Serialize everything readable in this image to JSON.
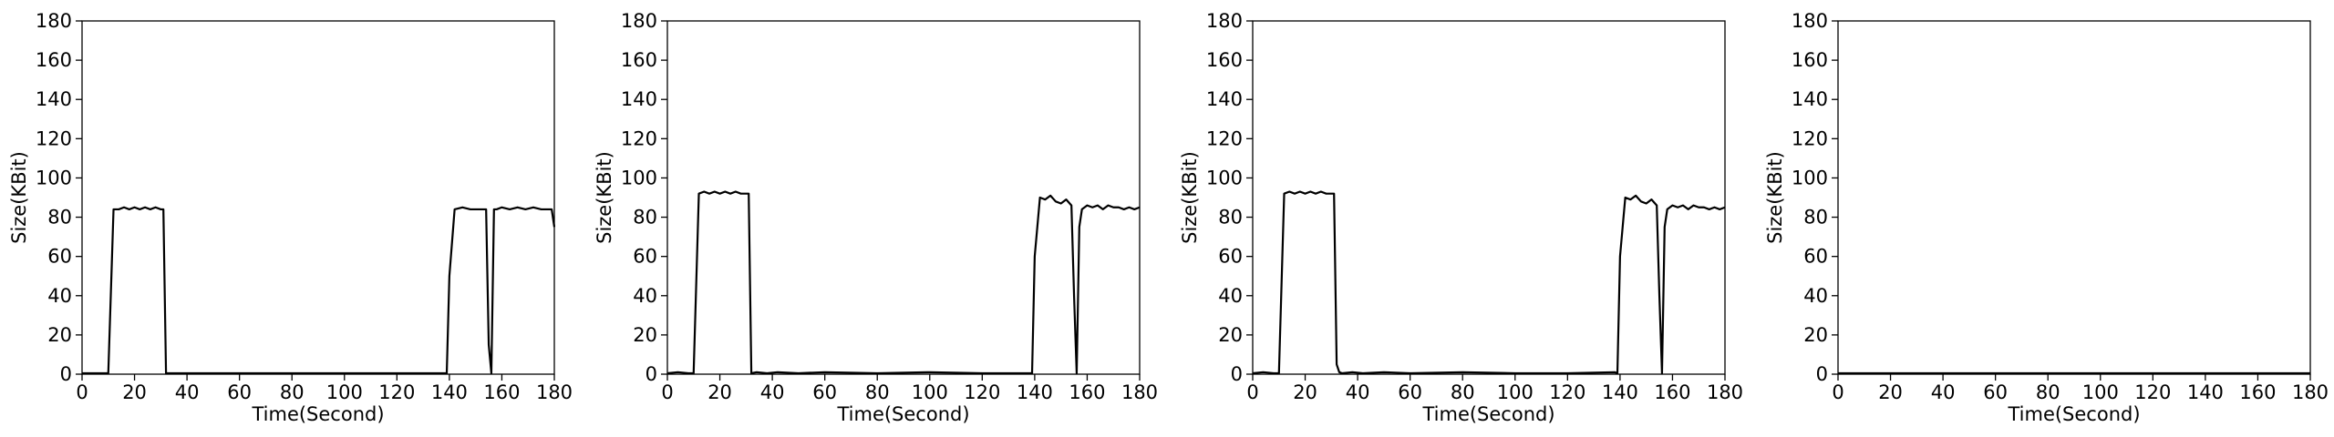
{
  "chart_data": [
    {
      "type": "line",
      "xlabel": "Time(Second)",
      "ylabel": "Size(KBit)",
      "xlim": [
        0,
        180
      ],
      "ylim": [
        0,
        180
      ],
      "xticks": [
        0,
        20,
        40,
        60,
        80,
        100,
        120,
        140,
        160,
        180
      ],
      "yticks": [
        0,
        20,
        40,
        60,
        80,
        100,
        120,
        140,
        160,
        180
      ],
      "grid": false,
      "series": [
        {
          "color": "#000000",
          "x": [
            0,
            10,
            12,
            14,
            16,
            18,
            20,
            22,
            24,
            26,
            28,
            30,
            31,
            32,
            34,
            60,
            100,
            139,
            140,
            142,
            145,
            148,
            150,
            154,
            155,
            156,
            157,
            158,
            160,
            163,
            166,
            169,
            172,
            175,
            178,
            179,
            180
          ],
          "y": [
            0.5,
            0.5,
            84,
            84,
            85,
            84,
            85,
            84,
            85,
            84,
            85,
            84,
            84,
            0.5,
            0.5,
            0.5,
            0.5,
            0.5,
            50,
            84,
            85,
            84,
            84,
            84,
            15,
            0.5,
            84,
            84,
            85,
            84,
            85,
            84,
            85,
            84,
            84,
            84,
            75
          ]
        }
      ]
    },
    {
      "type": "line",
      "xlabel": "Time(Second)",
      "ylabel": "Size(KBit)",
      "xlim": [
        0,
        180
      ],
      "ylim": [
        0,
        180
      ],
      "xticks": [
        0,
        20,
        40,
        60,
        80,
        100,
        120,
        140,
        160,
        180
      ],
      "yticks": [
        0,
        20,
        40,
        60,
        80,
        100,
        120,
        140,
        160,
        180
      ],
      "grid": false,
      "series": [
        {
          "color": "#000000",
          "x": [
            0,
            4,
            8,
            10,
            12,
            14,
            16,
            18,
            20,
            22,
            24,
            26,
            28,
            30,
            31,
            32,
            34,
            38,
            42,
            50,
            60,
            80,
            100,
            120,
            139,
            140,
            142,
            144,
            146,
            148,
            150,
            152,
            154,
            155,
            156,
            157,
            158,
            160,
            162,
            164,
            166,
            168,
            170,
            172,
            174,
            176,
            178,
            180
          ],
          "y": [
            0.5,
            1,
            0.5,
            0.5,
            92,
            93,
            92,
            93,
            92,
            93,
            92,
            93,
            92,
            92,
            92,
            0.5,
            1,
            0.5,
            1,
            0.5,
            1,
            0.5,
            1,
            0.5,
            0.5,
            60,
            90,
            89,
            91,
            88,
            87,
            89,
            86,
            40,
            0.5,
            75,
            84,
            86,
            85,
            86,
            84,
            86,
            85,
            85,
            84,
            85,
            84,
            85
          ]
        }
      ]
    },
    {
      "type": "line",
      "xlabel": "Time(Second)",
      "ylabel": "Size(KBit)",
      "xlim": [
        0,
        180
      ],
      "ylim": [
        0,
        180
      ],
      "xticks": [
        0,
        20,
        40,
        60,
        80,
        100,
        120,
        140,
        160,
        180
      ],
      "yticks": [
        0,
        20,
        40,
        60,
        80,
        100,
        120,
        140,
        160,
        180
      ],
      "grid": false,
      "series": [
        {
          "color": "#000000",
          "x": [
            0,
            4,
            8,
            10,
            12,
            14,
            16,
            18,
            20,
            22,
            24,
            26,
            28,
            30,
            31,
            32,
            33,
            34,
            38,
            42,
            50,
            60,
            80,
            100,
            120,
            138,
            139,
            140,
            142,
            144,
            146,
            148,
            150,
            152,
            154,
            155,
            156,
            157,
            158,
            160,
            162,
            164,
            166,
            168,
            170,
            172,
            174,
            176,
            178,
            180
          ],
          "y": [
            0.5,
            1,
            0.5,
            0.5,
            92,
            93,
            92,
            93,
            92,
            93,
            92,
            93,
            92,
            92,
            92,
            5,
            1,
            0.5,
            1,
            0.5,
            1,
            0.5,
            1,
            0.5,
            0.5,
            1,
            0.5,
            60,
            90,
            89,
            91,
            88,
            87,
            89,
            86,
            40,
            0.5,
            75,
            84,
            86,
            85,
            86,
            84,
            86,
            85,
            85,
            84,
            85,
            84,
            85
          ]
        }
      ]
    },
    {
      "type": "line",
      "xlabel": "Time(Second)",
      "ylabel": "Size(KBit)",
      "xlim": [
        0,
        180
      ],
      "ylim": [
        0,
        180
      ],
      "xticks": [
        0,
        20,
        40,
        60,
        80,
        100,
        120,
        140,
        160,
        180
      ],
      "yticks": [
        0,
        20,
        40,
        60,
        80,
        100,
        120,
        140,
        160,
        180
      ],
      "grid": false,
      "series": [
        {
          "color": "#000000",
          "x": [
            0,
            180
          ],
          "y": [
            0.5,
            0.5
          ]
        }
      ]
    }
  ]
}
